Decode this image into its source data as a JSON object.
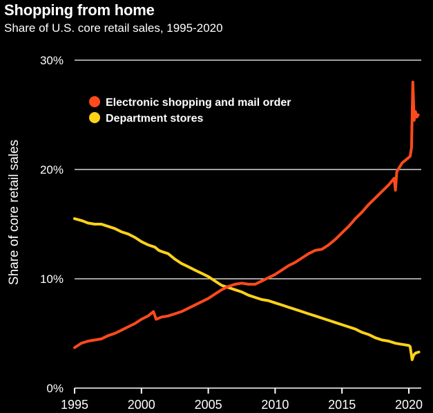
{
  "chart_data": {
    "type": "line",
    "title": "Shopping from home",
    "subtitle": "Share of U.S. core retail sales, 1995-2020",
    "ylabel": "Share of core retail sales",
    "xlabel": "",
    "xlim": [
      1995,
      2020.75
    ],
    "ylim": [
      0,
      30
    ],
    "x_ticks": [
      1995,
      2000,
      2005,
      2010,
      2015,
      2020
    ],
    "x_tick_labels": [
      "1995",
      "2000",
      "2005",
      "2010",
      "2015",
      "2020"
    ],
    "y_ticks": [
      0,
      10,
      20,
      30
    ],
    "y_tick_labels": [
      "0%",
      "10%",
      "20%",
      "30%"
    ],
    "grid": "horizontal",
    "legend_position": "top-left",
    "series": [
      {
        "name": "Electronic shopping and mail order",
        "color": "#ff4a1c",
        "points": [
          [
            1995.0,
            3.7
          ],
          [
            1995.5,
            4.1
          ],
          [
            1996.0,
            4.3
          ],
          [
            1996.5,
            4.4
          ],
          [
            1997.0,
            4.5
          ],
          [
            1997.5,
            4.8
          ],
          [
            1998.0,
            5.0
          ],
          [
            1998.5,
            5.3
          ],
          [
            1999.0,
            5.6
          ],
          [
            1999.5,
            5.9
          ],
          [
            2000.0,
            6.3
          ],
          [
            2000.5,
            6.6
          ],
          [
            2000.9,
            7.0
          ],
          [
            2001.1,
            6.3
          ],
          [
            2001.5,
            6.5
          ],
          [
            2002.0,
            6.6
          ],
          [
            2002.5,
            6.8
          ],
          [
            2003.0,
            7.0
          ],
          [
            2003.5,
            7.3
          ],
          [
            2004.0,
            7.6
          ],
          [
            2004.5,
            7.9
          ],
          [
            2005.0,
            8.2
          ],
          [
            2005.5,
            8.6
          ],
          [
            2006.0,
            9.0
          ],
          [
            2006.5,
            9.3
          ],
          [
            2007.0,
            9.5
          ],
          [
            2007.5,
            9.6
          ],
          [
            2008.0,
            9.5
          ],
          [
            2008.5,
            9.5
          ],
          [
            2009.0,
            9.8
          ],
          [
            2009.5,
            10.1
          ],
          [
            2010.0,
            10.4
          ],
          [
            2010.5,
            10.8
          ],
          [
            2011.0,
            11.2
          ],
          [
            2011.5,
            11.5
          ],
          [
            2012.0,
            11.9
          ],
          [
            2012.5,
            12.3
          ],
          [
            2013.0,
            12.6
          ],
          [
            2013.5,
            12.7
          ],
          [
            2014.0,
            13.1
          ],
          [
            2014.5,
            13.6
          ],
          [
            2015.0,
            14.2
          ],
          [
            2015.5,
            14.8
          ],
          [
            2016.0,
            15.5
          ],
          [
            2016.5,
            16.1
          ],
          [
            2017.0,
            16.8
          ],
          [
            2017.5,
            17.4
          ],
          [
            2018.0,
            18.0
          ],
          [
            2018.5,
            18.6
          ],
          [
            2018.9,
            19.2
          ],
          [
            2019.0,
            18.1
          ],
          [
            2019.1,
            19.8
          ],
          [
            2019.5,
            20.6
          ],
          [
            2019.9,
            21.0
          ],
          [
            2020.1,
            21.2
          ],
          [
            2020.2,
            22.0
          ],
          [
            2020.3,
            28.0
          ],
          [
            2020.4,
            24.5
          ],
          [
            2020.5,
            25.3
          ],
          [
            2020.6,
            24.8
          ],
          [
            2020.7,
            25.0
          ]
        ]
      },
      {
        "name": "Department stores",
        "color": "#ffd21a",
        "points": [
          [
            1995.0,
            15.5
          ],
          [
            1995.3,
            15.4
          ],
          [
            1995.6,
            15.3
          ],
          [
            1996.0,
            15.1
          ],
          [
            1996.5,
            15.0
          ],
          [
            1997.0,
            15.0
          ],
          [
            1997.5,
            14.8
          ],
          [
            1998.0,
            14.6
          ],
          [
            1998.5,
            14.3
          ],
          [
            1999.0,
            14.1
          ],
          [
            1999.5,
            13.8
          ],
          [
            2000.0,
            13.4
          ],
          [
            2000.5,
            13.1
          ],
          [
            2001.0,
            12.9
          ],
          [
            2001.3,
            12.6
          ],
          [
            2001.5,
            12.5
          ],
          [
            2002.0,
            12.3
          ],
          [
            2002.5,
            11.8
          ],
          [
            2003.0,
            11.4
          ],
          [
            2003.5,
            11.1
          ],
          [
            2004.0,
            10.8
          ],
          [
            2004.5,
            10.5
          ],
          [
            2005.0,
            10.2
          ],
          [
            2005.5,
            9.8
          ],
          [
            2006.0,
            9.4
          ],
          [
            2006.5,
            9.2
          ],
          [
            2007.0,
            9.0
          ],
          [
            2007.5,
            8.8
          ],
          [
            2008.0,
            8.5
          ],
          [
            2008.5,
            8.3
          ],
          [
            2009.0,
            8.1
          ],
          [
            2009.5,
            8.0
          ],
          [
            2010.0,
            7.8
          ],
          [
            2010.5,
            7.6
          ],
          [
            2011.0,
            7.4
          ],
          [
            2011.5,
            7.2
          ],
          [
            2012.0,
            7.0
          ],
          [
            2012.5,
            6.8
          ],
          [
            2013.0,
            6.6
          ],
          [
            2013.5,
            6.4
          ],
          [
            2014.0,
            6.2
          ],
          [
            2014.5,
            6.0
          ],
          [
            2015.0,
            5.8
          ],
          [
            2015.5,
            5.6
          ],
          [
            2016.0,
            5.4
          ],
          [
            2016.5,
            5.1
          ],
          [
            2017.0,
            4.9
          ],
          [
            2017.5,
            4.6
          ],
          [
            2018.0,
            4.4
          ],
          [
            2018.5,
            4.3
          ],
          [
            2019.0,
            4.1
          ],
          [
            2019.5,
            4.0
          ],
          [
            2020.0,
            3.9
          ],
          [
            2020.1,
            3.8
          ],
          [
            2020.25,
            2.6
          ],
          [
            2020.35,
            3.0
          ],
          [
            2020.5,
            3.2
          ],
          [
            2020.75,
            3.3
          ]
        ]
      }
    ]
  }
}
